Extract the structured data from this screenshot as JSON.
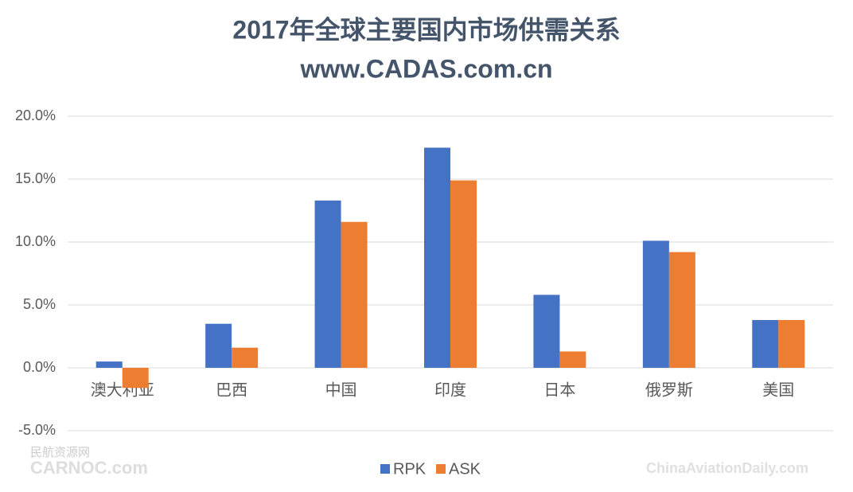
{
  "chart_data": {
    "type": "bar",
    "title": "2017年全球主要国内市场供需关系",
    "subtitle": "www.CADAS.com.cn",
    "categories": [
      "澳大利亚",
      "巴西",
      "中国",
      "印度",
      "日本",
      "俄罗斯",
      "美国"
    ],
    "series": [
      {
        "name": "RPK",
        "color": "#4472c4",
        "values": [
          0.5,
          3.5,
          13.3,
          17.5,
          5.8,
          10.1,
          3.8
        ]
      },
      {
        "name": "ASK",
        "color": "#ed7d31",
        "values": [
          -1.6,
          1.6,
          11.6,
          14.9,
          1.3,
          9.2,
          3.8
        ]
      }
    ],
    "ylim": [
      -5,
      20
    ],
    "yticks": [
      {
        "value": -5,
        "label": "-5.0%"
      },
      {
        "value": 0,
        "label": "0.0%"
      },
      {
        "value": 5,
        "label": "5.0%"
      },
      {
        "value": 10,
        "label": "10.0%"
      },
      {
        "value": 15,
        "label": "15.0%"
      },
      {
        "value": 20,
        "label": "20.0%"
      }
    ],
    "grid": true,
    "legend": "bottom",
    "watermarks": [
      "民航资源网",
      "CARNOC.com",
      "ChinaAviationDaily.com"
    ]
  }
}
